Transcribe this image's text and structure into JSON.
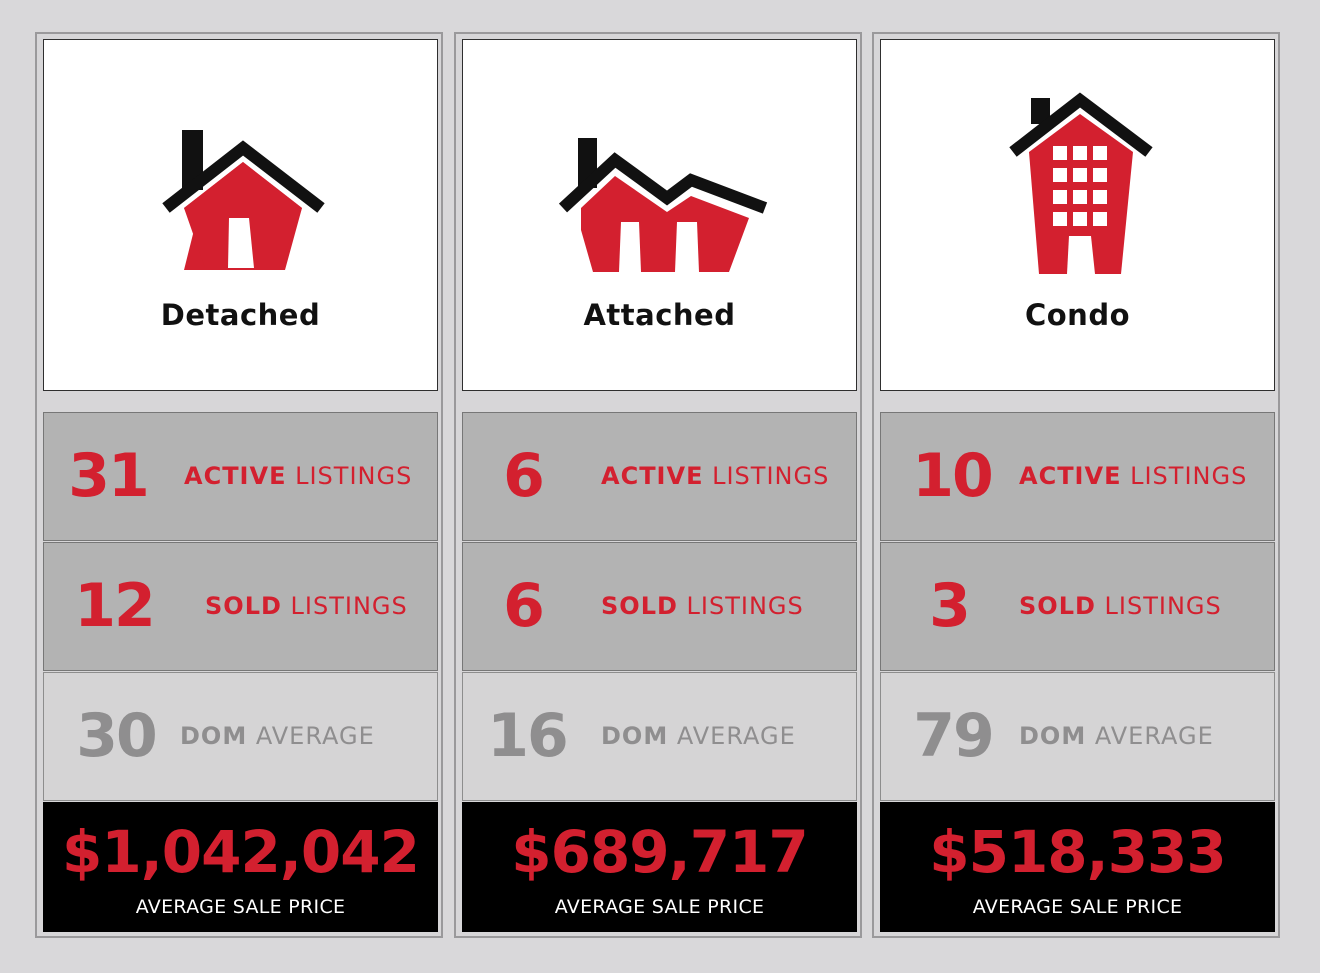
{
  "colors": {
    "accent": "#d3202f",
    "muted": "#8f8e8f",
    "dark": "#000000"
  },
  "columns": [
    {
      "type_label": "Detached",
      "icon": "detached-house-icon",
      "active_count": "31",
      "active_bold": "ACTIVE",
      "active_rest": " LISTINGS",
      "sold_count": "12",
      "sold_bold": "SOLD",
      "sold_rest": " LISTINGS",
      "dom_count": "30",
      "dom_bold": "DOM",
      "dom_rest": " AVERAGE",
      "price": "$1,042,042",
      "price_label": "AVERAGE SALE PRICE"
    },
    {
      "type_label": "Attached",
      "icon": "attached-house-icon",
      "active_count": "6",
      "active_bold": "ACTIVE",
      "active_rest": " LISTINGS",
      "sold_count": "6",
      "sold_bold": "SOLD",
      "sold_rest": " LISTINGS",
      "dom_count": "16",
      "dom_bold": "DOM",
      "dom_rest": " AVERAGE",
      "price": "$689,717",
      "price_label": "AVERAGE SALE PRICE"
    },
    {
      "type_label": "Condo",
      "icon": "condo-building-icon",
      "active_count": "10",
      "active_bold": "ACTIVE",
      "active_rest": " LISTINGS",
      "sold_count": "3",
      "sold_bold": "SOLD",
      "sold_rest": " LISTINGS",
      "dom_count": "79",
      "dom_bold": "DOM",
      "dom_rest": " AVERAGE",
      "price": "$518,333",
      "price_label": "AVERAGE SALE PRICE"
    }
  ]
}
